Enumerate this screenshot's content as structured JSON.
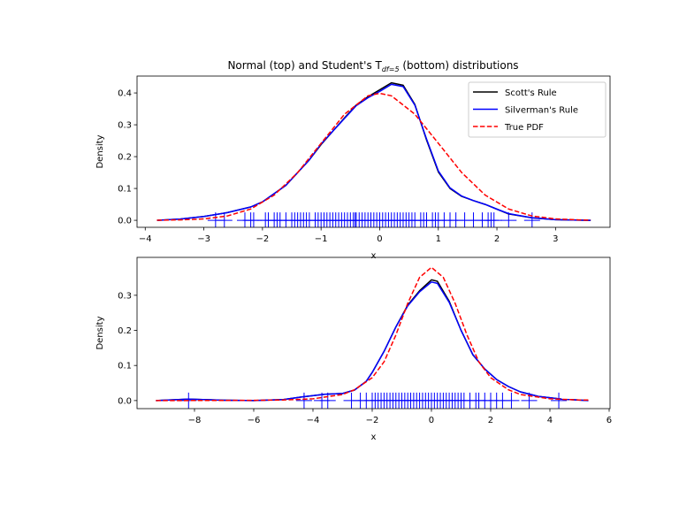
{
  "chart_data": [
    {
      "type": "line",
      "title": "Normal (top) and Student's T",
      "title_sub": "df=5",
      "title_end": " (bottom) distributions",
      "xlabel": "x",
      "ylabel": "Density",
      "xlim": [
        -4.14,
        3.93
      ],
      "ylim": [
        -0.022,
        0.453
      ],
      "xticks": [
        -4,
        -3,
        -2,
        -1,
        0,
        1,
        2,
        3
      ],
      "yticks": [
        0.0,
        0.1,
        0.2,
        0.3,
        0.4
      ],
      "grid": false,
      "legend": {
        "placement": "top-right",
        "entries": [
          "Scott's Rule",
          "Silverman's Rule",
          "True PDF"
        ]
      },
      "series": [
        {
          "name": "Scott's Rule",
          "color": "#000000",
          "style": "solid",
          "x": [
            -3.8,
            -3.4,
            -3,
            -2.6,
            -2.2,
            -2,
            -1.6,
            -1.2,
            -1,
            -0.6,
            -0.4,
            -0.2,
            0,
            0.2,
            0.4,
            0.6,
            0.8,
            1,
            1.2,
            1.4,
            1.6,
            1.8,
            2,
            2.2,
            2.6,
            3,
            3.6
          ],
          "y": [
            0.0,
            0.004,
            0.012,
            0.024,
            0.042,
            0.058,
            0.11,
            0.19,
            0.238,
            0.322,
            0.362,
            0.388,
            0.41,
            0.432,
            0.424,
            0.364,
            0.252,
            0.152,
            0.1,
            0.075,
            0.062,
            0.05,
            0.035,
            0.02,
            0.008,
            0.002,
            0.0
          ]
        },
        {
          "name": "Silverman's Rule",
          "color": "#0000ff",
          "style": "solid",
          "x": [
            -3.8,
            -3.4,
            -3,
            -2.6,
            -2.2,
            -2,
            -1.6,
            -1.2,
            -1,
            -0.6,
            -0.4,
            -0.2,
            0,
            0.2,
            0.4,
            0.6,
            0.8,
            1,
            1.2,
            1.4,
            1.6,
            1.8,
            2,
            2.2,
            2.6,
            3,
            3.6
          ],
          "y": [
            0.0,
            0.004,
            0.012,
            0.024,
            0.042,
            0.058,
            0.11,
            0.19,
            0.24,
            0.32,
            0.36,
            0.385,
            0.405,
            0.427,
            0.42,
            0.362,
            0.255,
            0.155,
            0.102,
            0.076,
            0.062,
            0.05,
            0.035,
            0.021,
            0.008,
            0.002,
            0.0
          ]
        },
        {
          "name": "True PDF",
          "color": "#ff0000",
          "style": "dashed",
          "x": [
            -3.8,
            -3.4,
            -3,
            -2.6,
            -2.2,
            -1.8,
            -1.4,
            -1,
            -0.6,
            -0.2,
            0,
            0.2,
            0.6,
            1,
            1.4,
            1.8,
            2.2,
            2.6,
            3,
            3.4,
            3.6
          ],
          "y": [
            0.0003,
            0.0012,
            0.0044,
            0.0136,
            0.0355,
            0.079,
            0.1497,
            0.242,
            0.3332,
            0.391,
            0.3989,
            0.391,
            0.3332,
            0.242,
            0.1497,
            0.079,
            0.0355,
            0.0136,
            0.0044,
            0.0012,
            0.0006
          ]
        }
      ],
      "rug": {
        "color": "#0000ff",
        "marker": "+",
        "x": [
          -2.8,
          -2.65,
          -2.3,
          -2.2,
          -2.15,
          -1.95,
          -1.9,
          -1.8,
          -1.75,
          -1.7,
          -1.6,
          -1.5,
          -1.45,
          -1.4,
          -1.35,
          -1.3,
          -1.25,
          -1.2,
          -1.1,
          -1.05,
          -1.0,
          -0.95,
          -0.9,
          -0.85,
          -0.8,
          -0.75,
          -0.7,
          -0.65,
          -0.6,
          -0.55,
          -0.5,
          -0.45,
          -0.42,
          -0.4,
          -0.35,
          -0.3,
          -0.25,
          -0.2,
          -0.15,
          -0.1,
          -0.05,
          0.0,
          0.05,
          0.1,
          0.15,
          0.2,
          0.25,
          0.3,
          0.35,
          0.4,
          0.45,
          0.5,
          0.55,
          0.6,
          0.7,
          0.75,
          0.8,
          0.9,
          0.95,
          1.0,
          1.1,
          1.2,
          1.3,
          1.45,
          1.6,
          1.75,
          1.85,
          1.9,
          1.95,
          2.2,
          2.6
        ]
      }
    },
    {
      "type": "line",
      "xlabel": "x",
      "ylabel": "Density",
      "xlim": [
        -9.94,
        6.03
      ],
      "ylim": [
        -0.023,
        0.408
      ],
      "xticks": [
        -8,
        -6,
        -4,
        -2,
        0,
        2,
        4,
        6
      ],
      "yticks": [
        0.0,
        0.1,
        0.2,
        0.3
      ],
      "grid": false,
      "series": [
        {
          "name": "Scott's Rule",
          "color": "#000000",
          "style": "solid",
          "x": [
            -9.3,
            -8.2,
            -7,
            -6,
            -5,
            -4.4,
            -3.6,
            -3,
            -2.6,
            -2.2,
            -2,
            -1.6,
            -1.2,
            -0.8,
            -0.4,
            0,
            0.2,
            0.6,
            1,
            1.4,
            1.8,
            2.2,
            2.6,
            3,
            3.6,
            4.4,
            5.3
          ],
          "y": [
            0.0,
            0.004,
            0.001,
            0.0,
            0.003,
            0.01,
            0.018,
            0.02,
            0.03,
            0.055,
            0.08,
            0.14,
            0.21,
            0.272,
            0.313,
            0.344,
            0.34,
            0.283,
            0.2,
            0.13,
            0.09,
            0.06,
            0.04,
            0.025,
            0.012,
            0.004,
            0.0
          ]
        },
        {
          "name": "Silverman's Rule",
          "color": "#0000ff",
          "style": "solid",
          "x": [
            -9.3,
            -8.2,
            -7,
            -6,
            -5,
            -4.4,
            -3.6,
            -3,
            -2.6,
            -2.2,
            -2,
            -1.6,
            -1.2,
            -0.8,
            -0.4,
            0,
            0.2,
            0.6,
            1,
            1.4,
            1.8,
            2.2,
            2.6,
            3,
            3.6,
            4.4,
            5.3
          ],
          "y": [
            0.0,
            0.004,
            0.001,
            0.0,
            0.003,
            0.01,
            0.018,
            0.02,
            0.03,
            0.055,
            0.08,
            0.14,
            0.21,
            0.27,
            0.31,
            0.338,
            0.334,
            0.28,
            0.2,
            0.131,
            0.09,
            0.06,
            0.04,
            0.025,
            0.012,
            0.004,
            0.0
          ]
        },
        {
          "name": "True PDF",
          "color": "#ff0000",
          "style": "dashed",
          "x": [
            -9.3,
            -8,
            -6,
            -5,
            -4,
            -3,
            -2.6,
            -2,
            -1.6,
            -1.2,
            -0.8,
            -0.4,
            0,
            0.4,
            0.8,
            1.2,
            1.6,
            2,
            2.6,
            3,
            4,
            5,
            5.3
          ],
          "y": [
            6e-05,
            0.0001,
            0.0007,
            0.0018,
            0.0051,
            0.0173,
            0.0307,
            0.0651,
            0.1104,
            0.187,
            0.2773,
            0.351,
            0.3796,
            0.351,
            0.2773,
            0.187,
            0.1104,
            0.0651,
            0.0307,
            0.0173,
            0.0051,
            0.0018,
            0.0015
          ]
        }
      ],
      "rug": {
        "color": "#0000ff",
        "marker": "+",
        "x": [
          -8.2,
          -4.3,
          -3.7,
          -3.5,
          -2.7,
          -2.4,
          -2.2,
          -2.0,
          -1.9,
          -1.8,
          -1.7,
          -1.6,
          -1.5,
          -1.4,
          -1.3,
          -1.2,
          -1.1,
          -1.0,
          -0.9,
          -0.8,
          -0.7,
          -0.6,
          -0.5,
          -0.4,
          -0.3,
          -0.2,
          -0.1,
          0.0,
          0.1,
          0.2,
          0.3,
          0.4,
          0.5,
          0.6,
          0.7,
          0.8,
          0.9,
          1.0,
          1.1,
          1.3,
          1.5,
          1.6,
          1.8,
          2.0,
          2.2,
          2.4,
          2.7,
          3.3,
          4.3
        ]
      }
    }
  ]
}
